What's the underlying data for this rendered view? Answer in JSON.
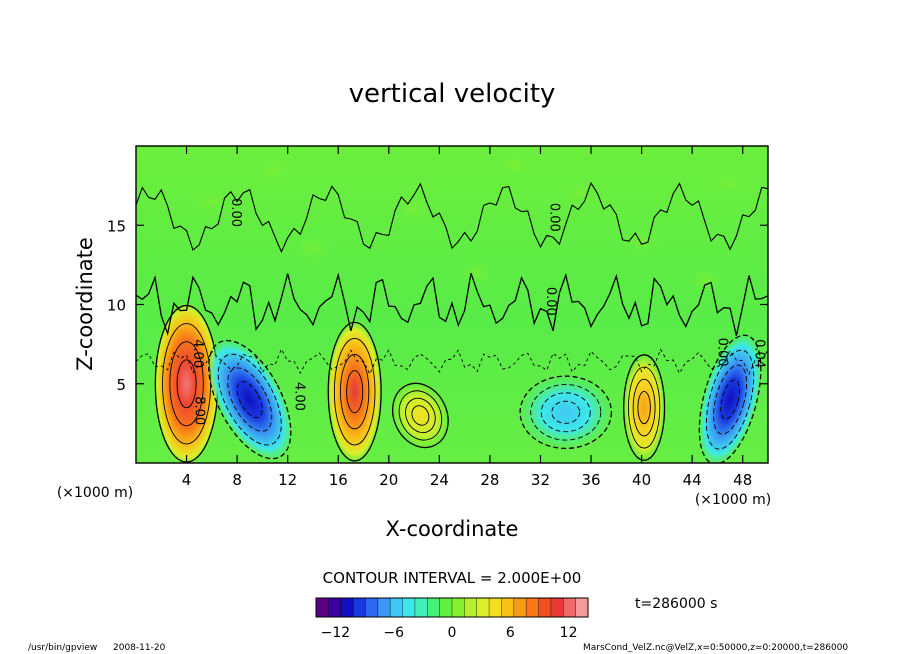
{
  "chart_data": {
    "type": "heatmap",
    "title": "vertical velocity",
    "xlabel": "X-coordinate",
    "ylabel": "Z-coordinate",
    "x_unit": "(×1000 m)",
    "y_unit": "(×1000 m)",
    "xlim": [
      0,
      50
    ],
    "ylim": [
      0,
      20
    ],
    "x_ticks": [
      4,
      8,
      12,
      16,
      20,
      24,
      28,
      32,
      36,
      40,
      44,
      48
    ],
    "y_ticks": [
      5,
      10,
      15
    ],
    "contour_interval_label": "CONTOUR INTERVAL = 2.000E+00",
    "contour_labels": [
      {
        "text": "0.00",
        "x": 7.6,
        "z": 15.8
      },
      {
        "text": "0.00",
        "x": 32.8,
        "z": 15.5
      },
      {
        "text": "0.00",
        "x": 32.5,
        "z": 10.2
      },
      {
        "text": "4.00",
        "x": 4.6,
        "z": 6.9
      },
      {
        "text": "8.00",
        "x": 4.7,
        "z": 3.3
      },
      {
        "text": "4.00",
        "x": 12.6,
        "z": 4.2
      },
      {
        "text": "0.00",
        "x": 46.1,
        "z": 7.0
      },
      {
        "text": "0.04",
        "x": 49.0,
        "z": 6.9
      }
    ],
    "colorbar": {
      "min": -14,
      "max": 14,
      "ticks": [
        -12,
        -6,
        0,
        6,
        12
      ],
      "colors": [
        "#5a0080",
        "#3a00a0",
        "#1010c0",
        "#1838e0",
        "#2e68f0",
        "#3a98f4",
        "#40c8f4",
        "#3ee8e8",
        "#3ff0b8",
        "#48f078",
        "#60f040",
        "#88f030",
        "#b4f030",
        "#dcee2a",
        "#f4e020",
        "#f8c018",
        "#f89c18",
        "#f87818",
        "#f05020",
        "#e83838",
        "#f06a6a",
        "#f69a9a"
      ]
    },
    "features": [
      {
        "type": "updraft",
        "x_center": 4,
        "z_center": 5,
        "peak": 12
      },
      {
        "type": "downdraft",
        "x_center": 9,
        "z_center": 4,
        "peak": -12
      },
      {
        "type": "updraft",
        "x_center": 17.3,
        "z_center": 4.5,
        "peak": 10
      },
      {
        "type": "updraft",
        "x_center": 22.5,
        "z_center": 3,
        "peak": 4
      },
      {
        "type": "downdraft",
        "x_center": 34,
        "z_center": 3.2,
        "peak": -4
      },
      {
        "type": "updraft",
        "x_center": 40.2,
        "z_center": 3.5,
        "peak": 8
      },
      {
        "type": "downdraft",
        "x_center": 47,
        "z_center": 4,
        "peak": -12
      }
    ],
    "time_label": "t=286000 s"
  },
  "footer": {
    "program": "/usr/bin/gpview",
    "date": "2008-11-20",
    "source": "MarsCond_VelZ.nc@VelZ,x=0:50000,z=0:20000,t=286000"
  }
}
